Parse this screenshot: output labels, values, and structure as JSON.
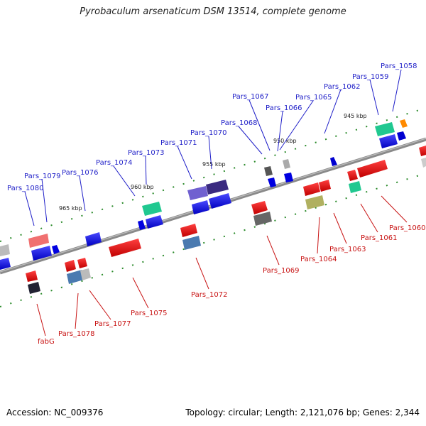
{
  "title": "Pyrobaculum arsenaticum DSM 13514, complete genome",
  "footer": {
    "accession": "Accession: NC_009376",
    "topology": "Topology: circular; Length: 2,121,076 bp; Genes: 2,344"
  },
  "ticks": [
    "945 kbp",
    "950 kbp",
    "955 kbp",
    "960 kbp",
    "965 kbp"
  ],
  "labels_top": [
    "Pars_1058",
    "Pars_1059",
    "Pars_1062",
    "Pars_1065",
    "Pars_1066",
    "Pars_1067",
    "Pars_1068",
    "Pars_1070",
    "Pars_1071",
    "Pars_1073",
    "Pars_1074",
    "Pars_1076",
    "Pars_1079",
    "Pars_1080"
  ],
  "labels_bottom": [
    "Pars_1060",
    "Pars_1061",
    "Pars_1063",
    "Pars_1064",
    "Pars_1069",
    "Pars_1072",
    "Pars_1075",
    "Pars_1077",
    "Pars_1078",
    "fabG"
  ],
  "colors": {
    "forward": "#0000e0",
    "reverse": "#e00000",
    "backbone": "#888888",
    "label_top": "#1e1ec8",
    "label_bottom": "#c81414"
  }
}
